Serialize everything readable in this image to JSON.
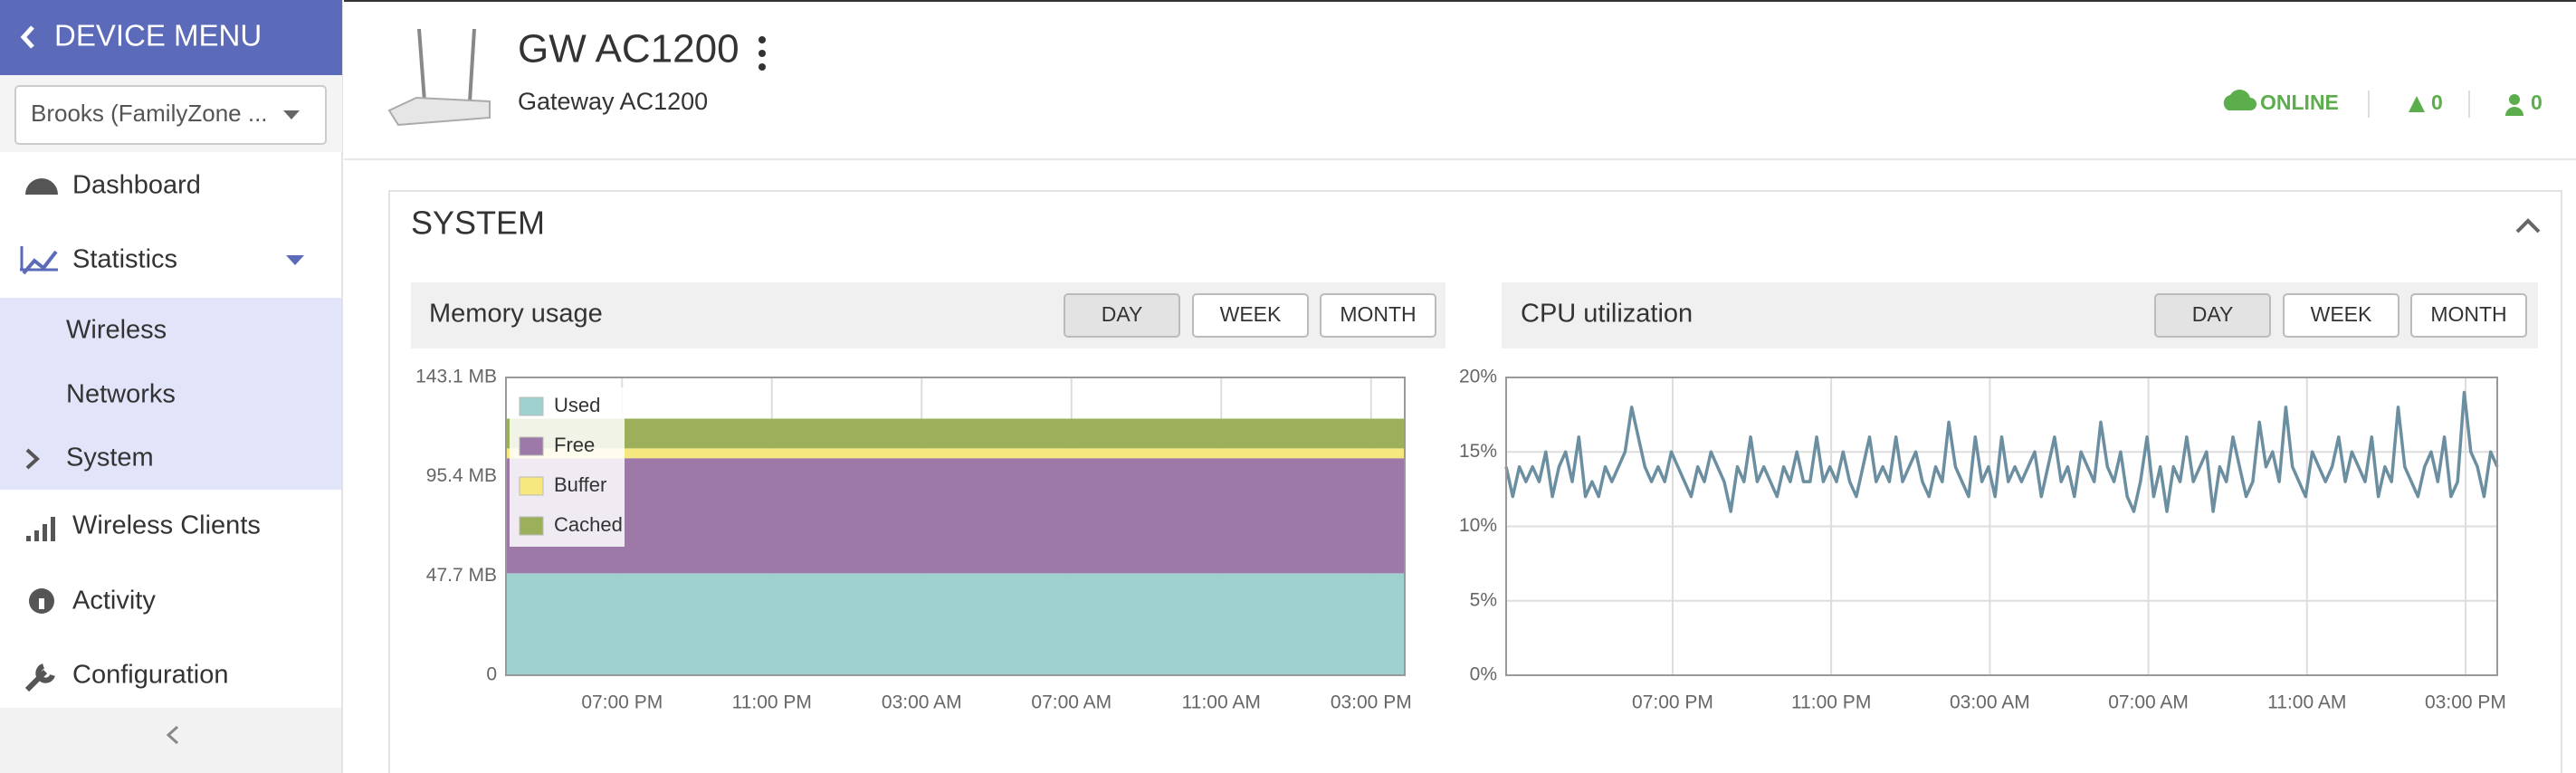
{
  "sidebar": {
    "title": "DEVICE MENU",
    "dropdown": "Brooks (FamilyZone ...",
    "items": [
      "Dashboard",
      "Statistics",
      "Wireless",
      "Networks",
      "System",
      "Wireless Clients",
      "Activity",
      "Configuration"
    ]
  },
  "header": {
    "title": "GW AC1200",
    "subtitle": "Gateway AC1200",
    "status": "ONLINE",
    "alerts": "0",
    "users": "0"
  },
  "section": {
    "title": "SYSTEM"
  },
  "panels": [
    {
      "buttons": [
        "DAY",
        "WEEK",
        "MONTH"
      ]
    },
    {
      "buttons": [
        "DAY",
        "WEEK",
        "MONTH"
      ]
    }
  ],
  "chart_data": [
    {
      "type": "area",
      "title": "Memory usage",
      "stacked": true,
      "grid": "x",
      "x": [
        0,
        24
      ],
      "xlim": [
        0,
        24
      ],
      "xticks": [
        {
          "value": 3.1,
          "label": "07:00 PM"
        },
        {
          "value": 7.1,
          "label": "11:00 PM"
        },
        {
          "value": 11.1,
          "label": "03:00 AM"
        },
        {
          "value": 15.1,
          "label": "07:00 AM"
        },
        {
          "value": 19.1,
          "label": "11:00 AM"
        },
        {
          "value": 23.1,
          "label": "03:00 PM"
        }
      ],
      "ylim": [
        0,
        143.1
      ],
      "yticks": [
        0,
        {
          "value": 47.7,
          "label": "47.7 MB"
        },
        {
          "value": 95.4,
          "label": "95.4 MB"
        },
        {
          "value": 143.1,
          "label": "143.1 MB"
        }
      ],
      "legend": "top-left",
      "series": [
        {
          "name": "Used",
          "color": "#9fd1ce",
          "values": [
            49,
            49
          ]
        },
        {
          "name": "Free",
          "color": "#9d79a7",
          "values": [
            55.3,
            55.3
          ]
        },
        {
          "name": "Buffer",
          "color": "#f6e77e",
          "values": [
            4.7,
            4.7
          ]
        },
        {
          "name": "Cached",
          "color": "#9cb05b",
          "values": [
            14.3,
            14.3
          ]
        }
      ]
    },
    {
      "type": "line",
      "title": "CPU utilization",
      "grid": "both",
      "color": "#6b8fa1",
      "xlim": [
        0,
        150
      ],
      "xticks": [
        {
          "value": 25.2,
          "label": "07:00 PM"
        },
        {
          "value": 49.2,
          "label": "11:00 PM"
        },
        {
          "value": 73.2,
          "label": "03:00 AM"
        },
        {
          "value": 97.2,
          "label": "07:00 AM"
        },
        {
          "value": 121.2,
          "label": "11:00 AM"
        },
        {
          "value": 145.2,
          "label": "03:00 PM"
        }
      ],
      "ylim": [
        0,
        20
      ],
      "yticks": [
        {
          "value": 0,
          "label": "0%"
        },
        {
          "value": 5,
          "label": "5%"
        },
        {
          "value": 10,
          "label": "10%"
        },
        {
          "value": 15,
          "label": "15%"
        },
        {
          "value": 20,
          "label": "20%"
        }
      ],
      "values": [
        14,
        12,
        14,
        13,
        14,
        13,
        15,
        12,
        14,
        15,
        13,
        16,
        12,
        13,
        12,
        14,
        13,
        14,
        15,
        18,
        16,
        14,
        13,
        14,
        13,
        15,
        14,
        13,
        12,
        14,
        13,
        15,
        14,
        13,
        11,
        14,
        13,
        16,
        13,
        14,
        13,
        12,
        14,
        13,
        15,
        13,
        13,
        16,
        13,
        14,
        13,
        15,
        13,
        12,
        14,
        16,
        13,
        14,
        13,
        16,
        13,
        14,
        15,
        13,
        12,
        14,
        13,
        17,
        14,
        13,
        12,
        16,
        13,
        14,
        12,
        16,
        13,
        14,
        13,
        14,
        15,
        12,
        14,
        16,
        13,
        14,
        12,
        15,
        14,
        13,
        17,
        14,
        13,
        15,
        12,
        11,
        13,
        16,
        12,
        14,
        11,
        14,
        13,
        16,
        13,
        14,
        15,
        11,
        14,
        13,
        16,
        14,
        12,
        13,
        17,
        14,
        15,
        13,
        18,
        14,
        13,
        12,
        15,
        14,
        13,
        14,
        16,
        13,
        15,
        14,
        13,
        16,
        12,
        14,
        13,
        18,
        14,
        13,
        12,
        14,
        15,
        13,
        16,
        12,
        13,
        19,
        15,
        14,
        12,
        15,
        14
      ]
    }
  ]
}
